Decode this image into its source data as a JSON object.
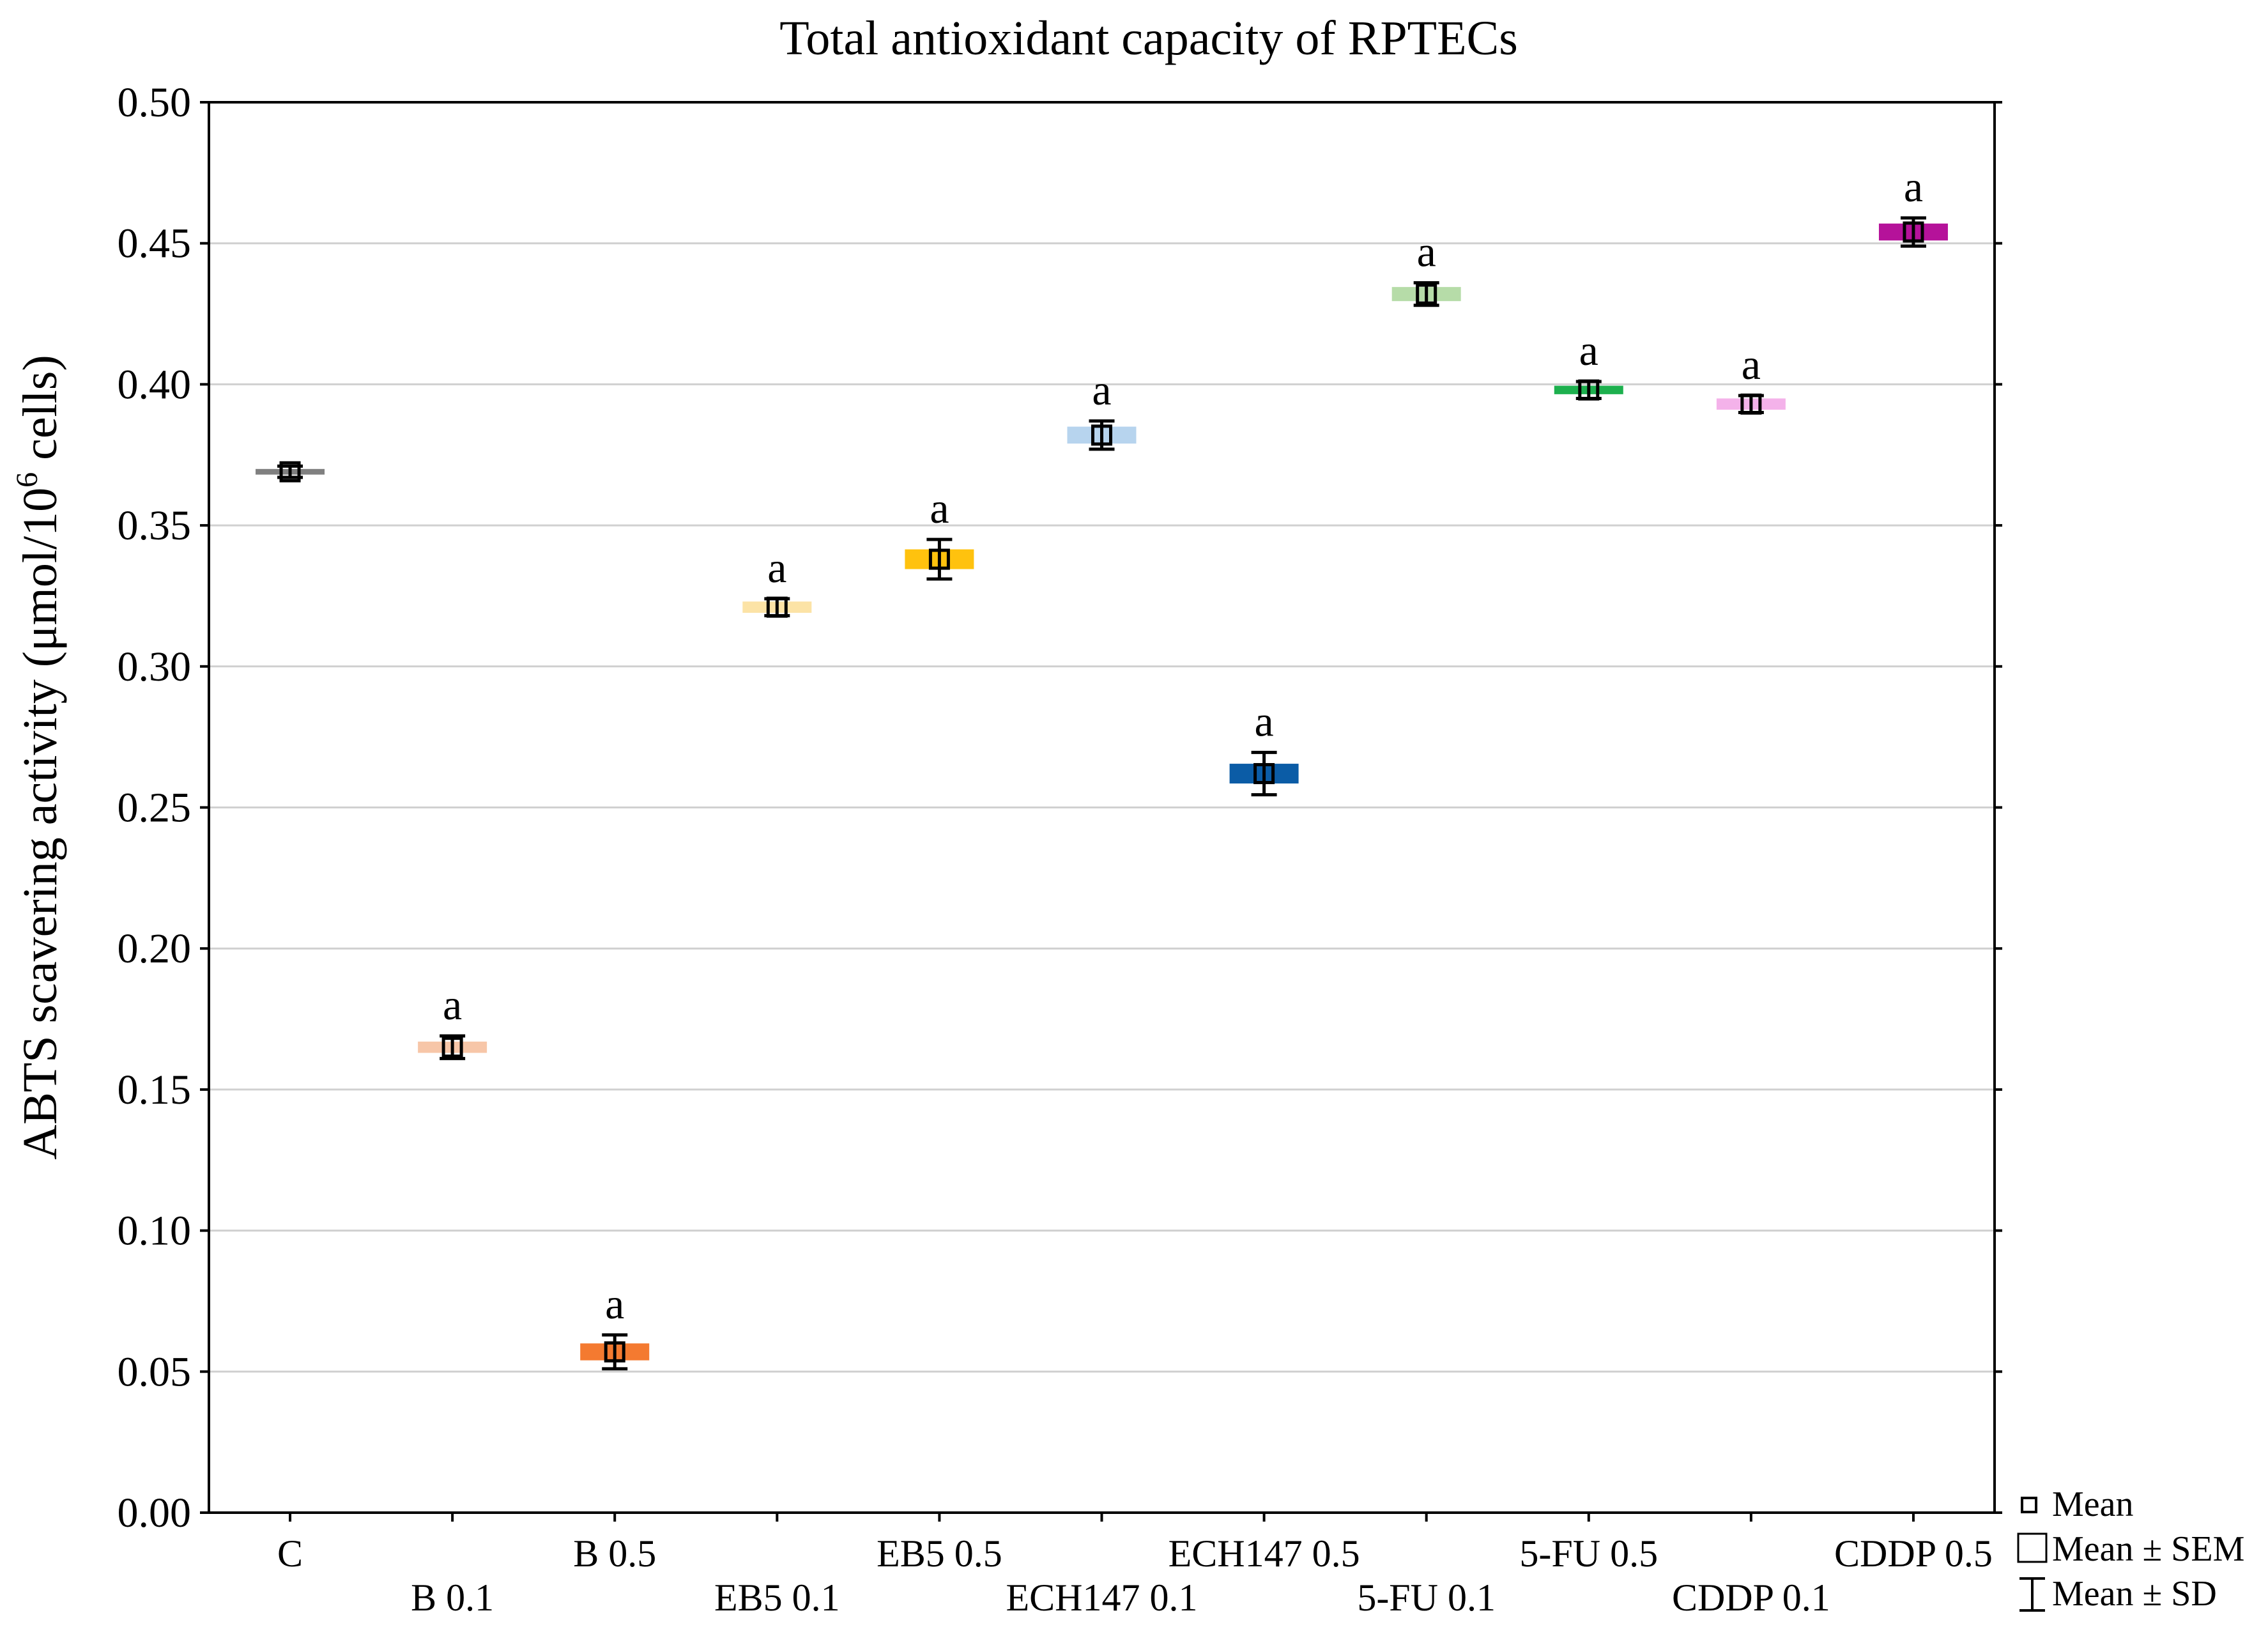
{
  "chart_data": {
    "type": "box",
    "title": "Total antioxidant capacity of RPTECs",
    "ylabel_main": "ABTS scavering activity (μmol/10",
    "ylabel_sup": "6",
    "ylabel_end": " cells)",
    "xlabel": "",
    "ylim": [
      0.0,
      0.5
    ],
    "yticks": [
      "0.00",
      "0.05",
      "0.10",
      "0.15",
      "0.20",
      "0.25",
      "0.30",
      "0.35",
      "0.40",
      "0.45",
      "0.50"
    ],
    "ytick_values": [
      0.0,
      0.05,
      0.1,
      0.15,
      0.2,
      0.25,
      0.3,
      0.35,
      0.4,
      0.45,
      0.5
    ],
    "grid": true,
    "categories": [
      "C",
      "B 0.1",
      "B 0.5",
      "EB5 0.1",
      "EB5 0.5",
      "ECH147 0.1",
      "ECH147 0.5",
      "5-FU 0.1",
      "5-FU 0.5",
      "CDDP 0.1",
      "CDDP 0.5"
    ],
    "series": [
      {
        "category": "C",
        "mean": 0.369,
        "sem": 0.001,
        "sd": 0.002,
        "color": "#808080",
        "label": ""
      },
      {
        "category": "B 0.1",
        "mean": 0.165,
        "sem": 0.002,
        "sd": 0.004,
        "color": "#F7C6A8",
        "label": "a"
      },
      {
        "category": "B 0.5",
        "mean": 0.057,
        "sem": 0.003,
        "sd": 0.006,
        "color": "#F47A30",
        "label": "a"
      },
      {
        "category": "EB5 0.1",
        "mean": 0.321,
        "sem": 0.002,
        "sd": 0.003,
        "color": "#FCE3A6",
        "label": "a"
      },
      {
        "category": "EB5 0.5",
        "mean": 0.338,
        "sem": 0.0035,
        "sd": 0.007,
        "color": "#FFC20E",
        "label": "a"
      },
      {
        "category": "ECH147 0.1",
        "mean": 0.382,
        "sem": 0.003,
        "sd": 0.005,
        "color": "#B7D4EE",
        "label": "a"
      },
      {
        "category": "ECH147 0.5",
        "mean": 0.262,
        "sem": 0.0035,
        "sd": 0.0075,
        "color": "#0B5CA6",
        "label": "a"
      },
      {
        "category": "5-FU 0.1",
        "mean": 0.432,
        "sem": 0.0025,
        "sd": 0.004,
        "color": "#B6DCA8",
        "label": "a"
      },
      {
        "category": "5-FU 0.5",
        "mean": 0.398,
        "sem": 0.0015,
        "sd": 0.003,
        "color": "#1DB04E",
        "label": "a"
      },
      {
        "category": "CDDP 0.1",
        "mean": 0.393,
        "sem": 0.002,
        "sd": 0.003,
        "color": "#F4B2EA",
        "label": "a"
      },
      {
        "category": "CDDP 0.5",
        "mean": 0.454,
        "sem": 0.003,
        "sd": 0.005,
        "color": "#B5129A",
        "label": "a"
      }
    ],
    "legend": {
      "position": "bottom-right",
      "items": [
        "Mean",
        "Mean ± SEM",
        "Mean ± SD"
      ]
    }
  }
}
